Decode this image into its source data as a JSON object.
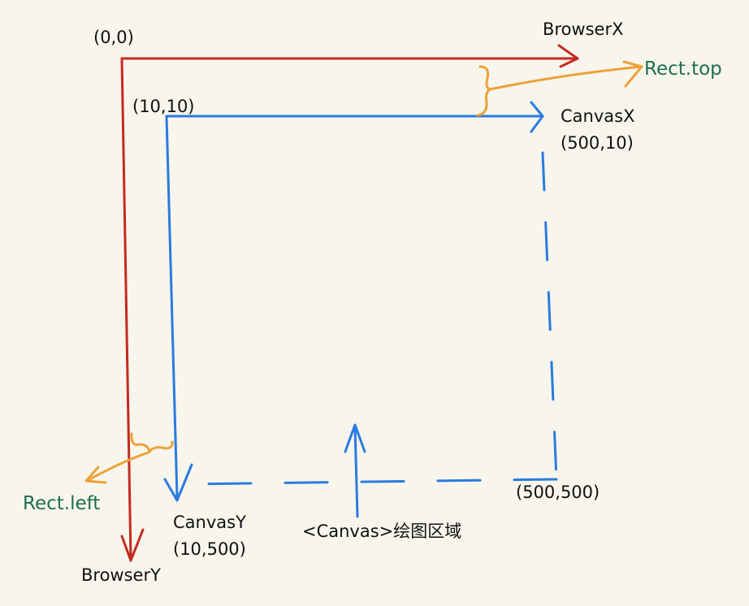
{
  "labels": {
    "origin": "(0,0)",
    "browser_x": "BrowserX",
    "browser_y": "BrowserY",
    "canvas_origin": "(10,10)",
    "canvas_x": "CanvasX",
    "canvas_x_coord": "(500,10)",
    "canvas_y": "CanvasY",
    "canvas_y_coord": "(10,500)",
    "canvas_corner": "(500,500)",
    "rect_top": "Rect.top",
    "rect_left": "Rect.left",
    "canvas_area": "<Canvas>绘图区域"
  },
  "colors": {
    "background": "#f7f5ec",
    "browser_axes": "#c42a1f",
    "canvas_axes": "#2a7be0",
    "rect_annotations": "#eda137",
    "rect_text": "#1f6e50"
  }
}
